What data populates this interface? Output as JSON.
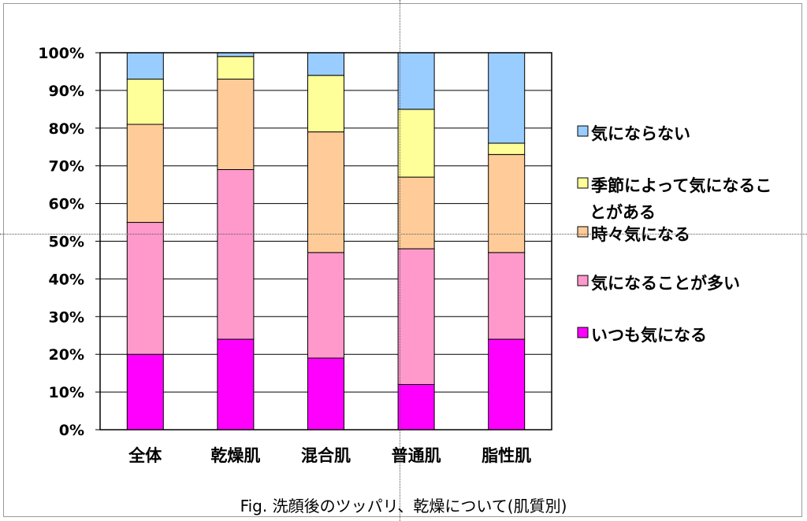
{
  "caption": "Fig.  洗顔後のツッパリ、乾燥について(肌質別)",
  "chart_data": {
    "type": "bar",
    "stacked": true,
    "percent": true,
    "categories": [
      "全体",
      "乾燥肌",
      "混合肌",
      "普通肌",
      "脂性肌"
    ],
    "y_ticks": [
      "0%",
      "10%",
      "20%",
      "30%",
      "40%",
      "50%",
      "60%",
      "70%",
      "80%",
      "90%",
      "100%"
    ],
    "ylim": [
      0,
      100
    ],
    "grid": true,
    "legend_position": "right",
    "series": [
      {
        "name": "いつも気になる",
        "color": "#ff00ff",
        "values": [
          20,
          24,
          19,
          12,
          24
        ]
      },
      {
        "name": "気になることが多い",
        "color": "#ff99cc",
        "values": [
          35,
          45,
          28,
          36,
          23
        ]
      },
      {
        "name": "時々気になる",
        "color": "#ffcc99",
        "values": [
          26,
          24,
          32,
          19,
          26
        ]
      },
      {
        "name": "季節によって気になることがある",
        "color": "#ffff99",
        "values": [
          12,
          6,
          15,
          18,
          3
        ]
      },
      {
        "name": "気にならない",
        "color": "#99ccff",
        "values": [
          7,
          1,
          6,
          15,
          24
        ]
      }
    ]
  }
}
